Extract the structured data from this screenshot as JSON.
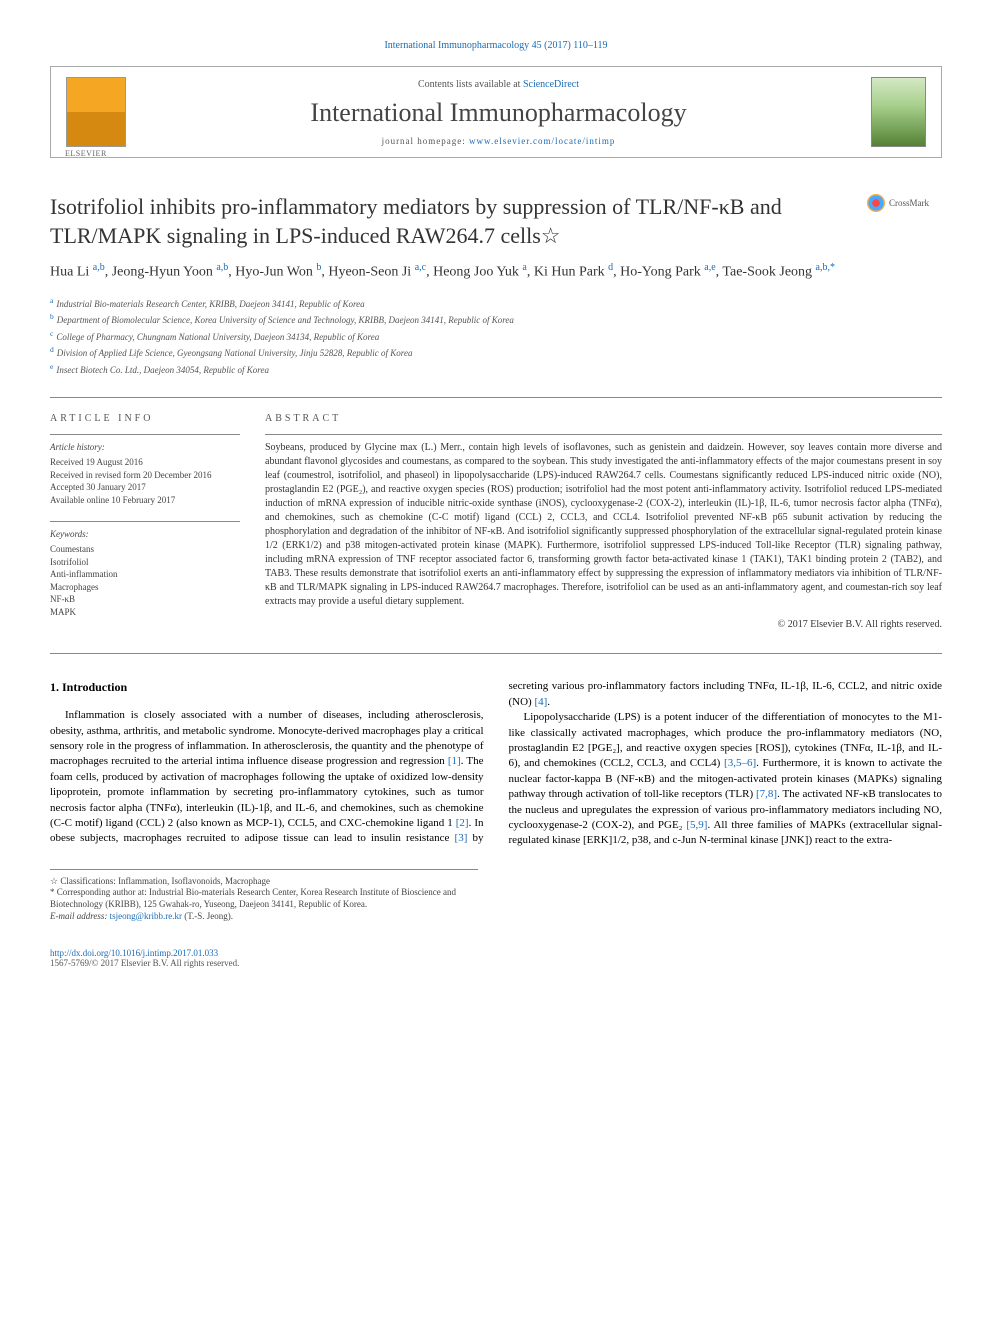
{
  "top_link": "International Immunopharmacology 45 (2017) 110–119",
  "header": {
    "contents_prefix": "Contents lists available at ",
    "contents_link": "ScienceDirect",
    "journal_name": "International Immunopharmacology",
    "homepage_prefix": "journal homepage: ",
    "homepage_url": "www.elsevier.com/locate/intimp"
  },
  "title": "Isotrifoliol inhibits pro-inflammatory mediators by suppression of TLR/NF-κB and TLR/MAPK signaling in LPS-induced RAW264.7 cells☆",
  "crossmark_label": "CrossMark",
  "authors_html": "Hua Li <sup class='aff'>a,b</sup>, Jeong-Hyun Yoon <sup class='aff'>a,b</sup>, Hyo-Jun Won <sup class='aff'>b</sup>, Hyeon-Seon Ji <sup class='aff'>a,c</sup>, Heong Joo Yuk <sup class='aff'>a</sup>, Ki Hun Park <sup class='aff'>d</sup>, Ho-Yong Park <sup class='aff'>a,e</sup>, Tae-Sook Jeong <sup class='aff'>a,b,*</sup>",
  "affiliations": [
    {
      "sup": "a",
      "text": "Industrial Bio-materials Research Center, KRIBB, Daejeon 34141, Republic of Korea"
    },
    {
      "sup": "b",
      "text": "Department of Biomolecular Science, Korea University of Science and Technology, KRIBB, Daejeon 34141, Republic of Korea"
    },
    {
      "sup": "c",
      "text": "College of Pharmacy, Chungnam National University, Daejeon 34134, Republic of Korea"
    },
    {
      "sup": "d",
      "text": "Division of Applied Life Science, Gyeongsang National University, Jinju 52828, Republic of Korea"
    },
    {
      "sup": "e",
      "text": "Insect Biotech Co. Ltd., Daejeon 34054, Republic of Korea"
    }
  ],
  "article_info": {
    "label": "ARTICLE INFO",
    "history_label": "Article history:",
    "received": "Received 19 August 2016",
    "revised": "Received in revised form 20 December 2016",
    "accepted": "Accepted 30 January 2017",
    "online": "Available online 10 February 2017",
    "keywords_label": "Keywords:",
    "keywords": [
      "Coumestans",
      "Isotrifoliol",
      "Anti-inflammation",
      "Macrophages",
      "NF-κB",
      "MAPK"
    ]
  },
  "abstract": {
    "label": "ABSTRACT",
    "text": "Soybeans, produced by Glycine max (L.) Merr., contain high levels of isoflavones, such as genistein and daidzein. However, soy leaves contain more diverse and abundant flavonol glycosides and coumestans, as compared to the soybean. This study investigated the anti-inflammatory effects of the major coumestans present in soy leaf (coumestrol, isotrifoliol, and phaseol) in lipopolysaccharide (LPS)-induced RAW264.7 cells. Coumestans significantly reduced LPS-induced nitric oxide (NO), prostaglandin E2 (PGE₂), and reactive oxygen species (ROS) production; isotrifoliol had the most potent anti-inflammatory activity. Isotrifoliol reduced LPS-mediated induction of mRNA expression of inducible nitric-oxide synthase (iNOS), cyclooxygenase-2 (COX-2), interleukin (IL)-1β, IL-6, tumor necrosis factor alpha (TNFα), and chemokines, such as chemokine (C-C motif) ligand (CCL) 2, CCL3, and CCL4. Isotrifoliol prevented NF-κB p65 subunit activation by reducing the phosphorylation and degradation of the inhibitor of NF-κB. And isotrifoliol significantly suppressed phosphorylation of the extracellular signal-regulated protein kinase 1/2 (ERK1/2) and p38 mitogen-activated protein kinase (MAPK). Furthermore, isotrifoliol suppressed LPS-induced Toll-like Receptor (TLR) signaling pathway, including mRNA expression of TNF receptor associated factor 6, transforming growth factor beta-activated kinase 1 (TAK1), TAK1 binding protein 2 (TAB2), and TAB3. These results demonstrate that isotrifoliol exerts an anti-inflammatory effect by suppressing the expression of inflammatory mediators via inhibition of TLR/NF-κB and TLR/MAPK signaling in LPS-induced RAW264.7 macrophages. Therefore, isotrifoliol can be used as an anti-inflammatory agent, and coumestan-rich soy leaf extracts may provide a useful dietary supplement.",
    "copyright": "© 2017 Elsevier B.V. All rights reserved."
  },
  "body": {
    "heading": "1. Introduction",
    "p1": "Inflammation is closely associated with a number of diseases, including atherosclerosis, obesity, asthma, arthritis, and metabolic syndrome. Monocyte-derived macrophages play a critical sensory role in the progress of inflammation. In atherosclerosis, the quantity and the phenotype of macrophages recruited to the arterial intima influence disease progression and regression ",
    "p1b": ". The foam cells, produced by activation of macrophages following the uptake of oxidized low-density lipoprotein, promote inflammation by secreting pro-inflammatory cytokines, such as tumor necrosis factor alpha (TNFα), interleukin (IL)-1β, and IL-6, and chemokines, such as chemokine (C-C motif) ligand (CCL) 2 (also known as MCP-1), CCL5, and CXC-chemokine ligand 1 ",
    "p1c": ". In obese subjects, macrophages recruited to adipose tissue can lead to insulin resistance ",
    "p1d": " by secreting various pro-inflammatory factors including TNFα, IL-1β, IL-6, CCL2, and nitric oxide (NO) ",
    "p2a": "Lipopolysaccharide (LPS) is a potent inducer of the differentiation of monocytes to the M1-like classically activated macrophages, which produce the pro-inflammatory mediators (NO, prostaglandin E2 [PGE₂], and reactive oxygen species [ROS]), cytokines (TNFα, IL-1β, and IL-6), and chemokines (CCL2, CCL3, and CCL4) ",
    "p2b": ". Furthermore, it is known to activate the nuclear factor-kappa B (NF-κB) and the mitogen-activated protein kinases (MAPKs) signaling pathway through activation of toll-like receptors (TLR) ",
    "p2c": ". The activated NF-κB translocates to the nucleus and upregulates the expression of various pro-inflammatory mediators including NO, cyclooxygenase-2 (COX-2), and PGE₂ ",
    "p2d": ". All three families of MAPKs (extracellular signal-regulated kinase [ERK]1/2, p38, and c-Jun N-terminal kinase [JNK]) react to the extra-",
    "ref1": "[1]",
    "ref2": "[2]",
    "ref3": "[3]",
    "ref4": "[4]",
    "ref5": "[3,5–6]",
    "ref6": "[7,8]",
    "ref7": "[5,9]"
  },
  "footnotes": {
    "class_line": "☆ Classifications: Inflammation, Isoflavonoids, Macrophage",
    "corr_label": "* Corresponding author at: Industrial Bio-materials Research Center, Korea Research Institute of Bioscience and Biotechnology (KRIBB), 125 Gwahak-ro, Yuseong, Daejeon 34141, Republic of Korea.",
    "email_label": "E-mail address: ",
    "email": "tsjeong@kribb.re.kr",
    "email_name": " (T.-S. Jeong)."
  },
  "footer": {
    "doi": "http://dx.doi.org/10.1016/j.intimp.2017.01.033",
    "issn": "1567-5769/© 2017 Elsevier B.V. All rights reserved."
  },
  "colors": {
    "link": "#1a6bb5",
    "text": "#333333",
    "muted": "#555555"
  }
}
